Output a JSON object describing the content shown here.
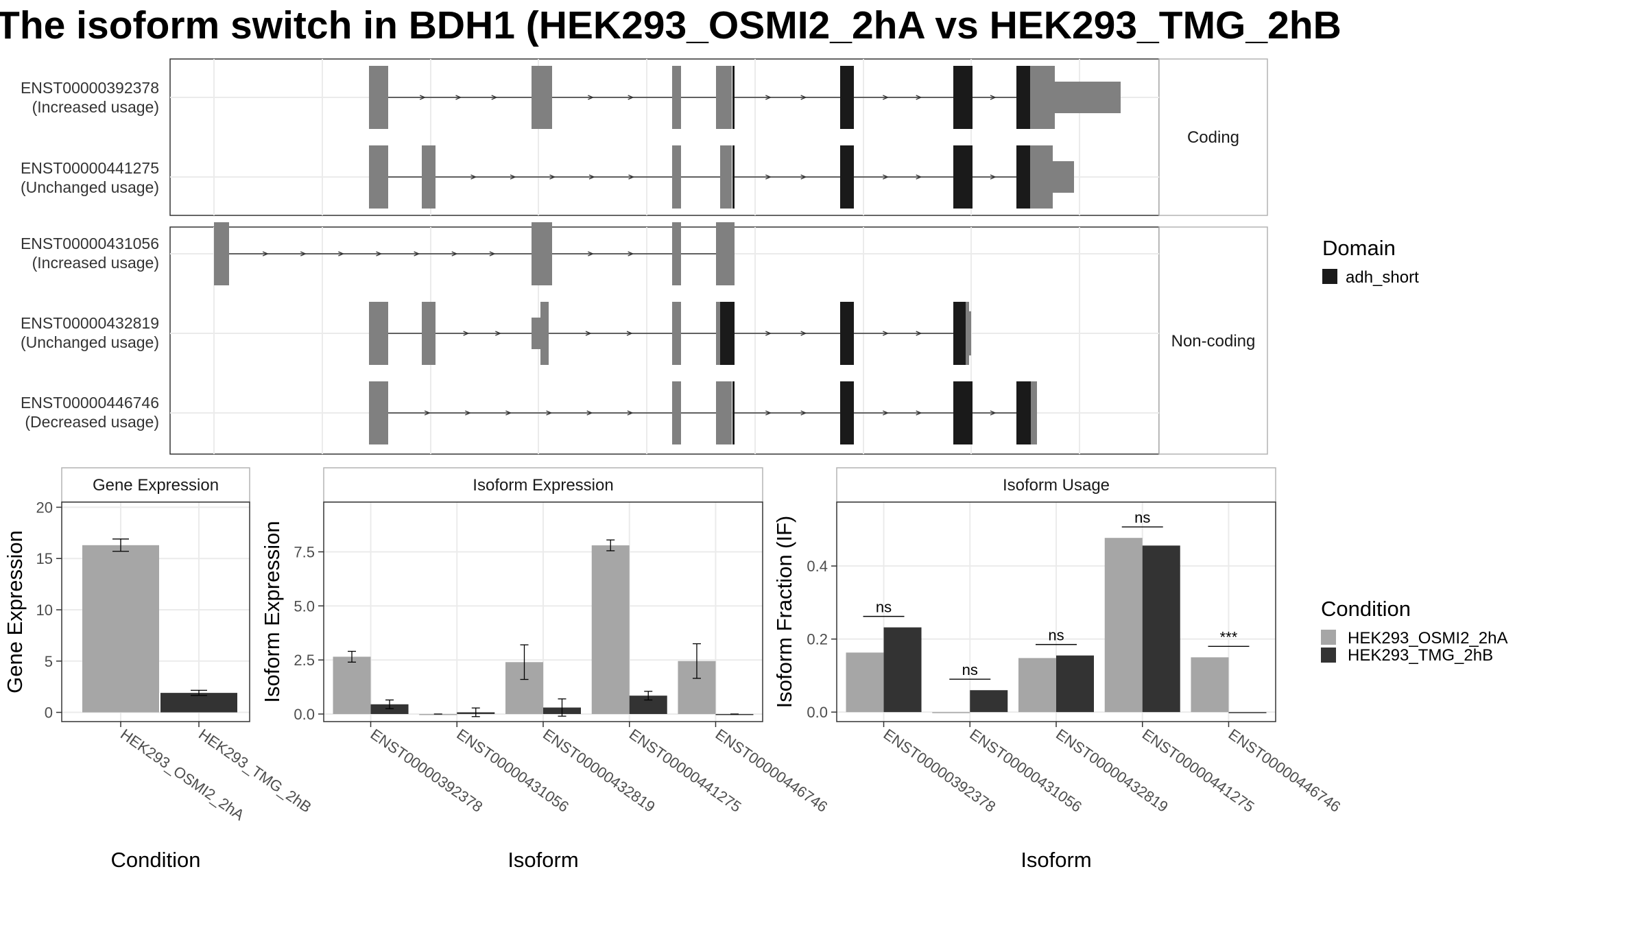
{
  "title": "The isoform switch in BDH1 (HEK293_OSMI2_2hA vs HEK293_TMG_2hB",
  "colors": {
    "exon": "#808080",
    "domain": "#1a1a1a",
    "cond1": "#a6a6a6",
    "cond2": "#333333",
    "panel_border": "#333333",
    "strip_border": "#b3b3b3",
    "grid": "#ebebeb"
  },
  "chart_data": [
    {
      "type": "gene-structure",
      "facets": [
        "Coding",
        "Non-coding"
      ],
      "transcripts": [
        {
          "id": "ENST00000392378",
          "usage": "(Increased usage)",
          "facet": "Coding"
        },
        {
          "id": "ENST00000441275",
          "usage": "(Unchanged usage)",
          "facet": "Coding"
        },
        {
          "id": "ENST00000431056",
          "usage": "(Increased usage)",
          "facet": "Non-coding"
        },
        {
          "id": "ENST00000432819",
          "usage": "(Unchanged usage)",
          "facet": "Non-coding"
        },
        {
          "id": "ENST00000446746",
          "usage": "(Decreased usage)",
          "facet": "Non-coding"
        }
      ],
      "legend": {
        "title": "Domain",
        "items": [
          "adh_short"
        ]
      }
    },
    {
      "type": "bar",
      "strip": "Gene Expression",
      "xlabel": "Condition",
      "ylabel": "Gene Expression",
      "categories": [
        "HEK293_OSMI2_2hA",
        "HEK293_TMG_2hB"
      ],
      "values": [
        16.3,
        1.9
      ],
      "errors": [
        0.6,
        0.25
      ],
      "ylim": [
        -0.9,
        20.5
      ],
      "yticks": [
        0,
        5,
        10,
        15,
        20
      ]
    },
    {
      "type": "bar",
      "strip": "Isoform Expression",
      "xlabel": "Isoform",
      "ylabel": "Isoform Expression",
      "categories": [
        "ENST00000392378",
        "ENST00000431056",
        "ENST00000432819",
        "ENST00000441275",
        "ENST00000446746"
      ],
      "series": [
        {
          "name": "HEK293_OSMI2_2hA",
          "values": [
            2.65,
            0,
            2.4,
            7.8,
            2.45
          ],
          "errors": [
            0.25,
            0,
            0.8,
            0.25,
            0.8
          ]
        },
        {
          "name": "HEK293_TMG_2hB",
          "values": [
            0.45,
            0.08,
            0.3,
            0.85,
            0
          ],
          "errors": [
            0.2,
            0.2,
            0.4,
            0.2,
            0
          ]
        }
      ],
      "ylim": [
        -0.35,
        9.8
      ],
      "yticks": [
        "0.0",
        "2.5",
        "5.0",
        "7.5"
      ]
    },
    {
      "type": "bar",
      "strip": "Isoform Usage",
      "xlabel": "Isoform",
      "ylabel": "Isoform Fraction (IF)",
      "categories": [
        "ENST00000392378",
        "ENST00000431056",
        "ENST00000432819",
        "ENST00000441275",
        "ENST00000446746"
      ],
      "series": [
        {
          "name": "HEK293_OSMI2_2hA",
          "values": [
            0.163,
            0.0,
            0.148,
            0.477,
            0.15
          ]
        },
        {
          "name": "HEK293_TMG_2hB",
          "values": [
            0.232,
            0.06,
            0.155,
            0.456,
            0.0
          ]
        }
      ],
      "significance": [
        "ns",
        "ns",
        "ns",
        "ns",
        "***"
      ],
      "ylim": [
        -0.026,
        0.575
      ],
      "yticks": [
        "0.0",
        "0.2",
        "0.4"
      ],
      "legend": {
        "title": "Condition",
        "items": [
          "HEK293_OSMI2_2hA",
          "HEK293_TMG_2hB"
        ]
      }
    }
  ]
}
